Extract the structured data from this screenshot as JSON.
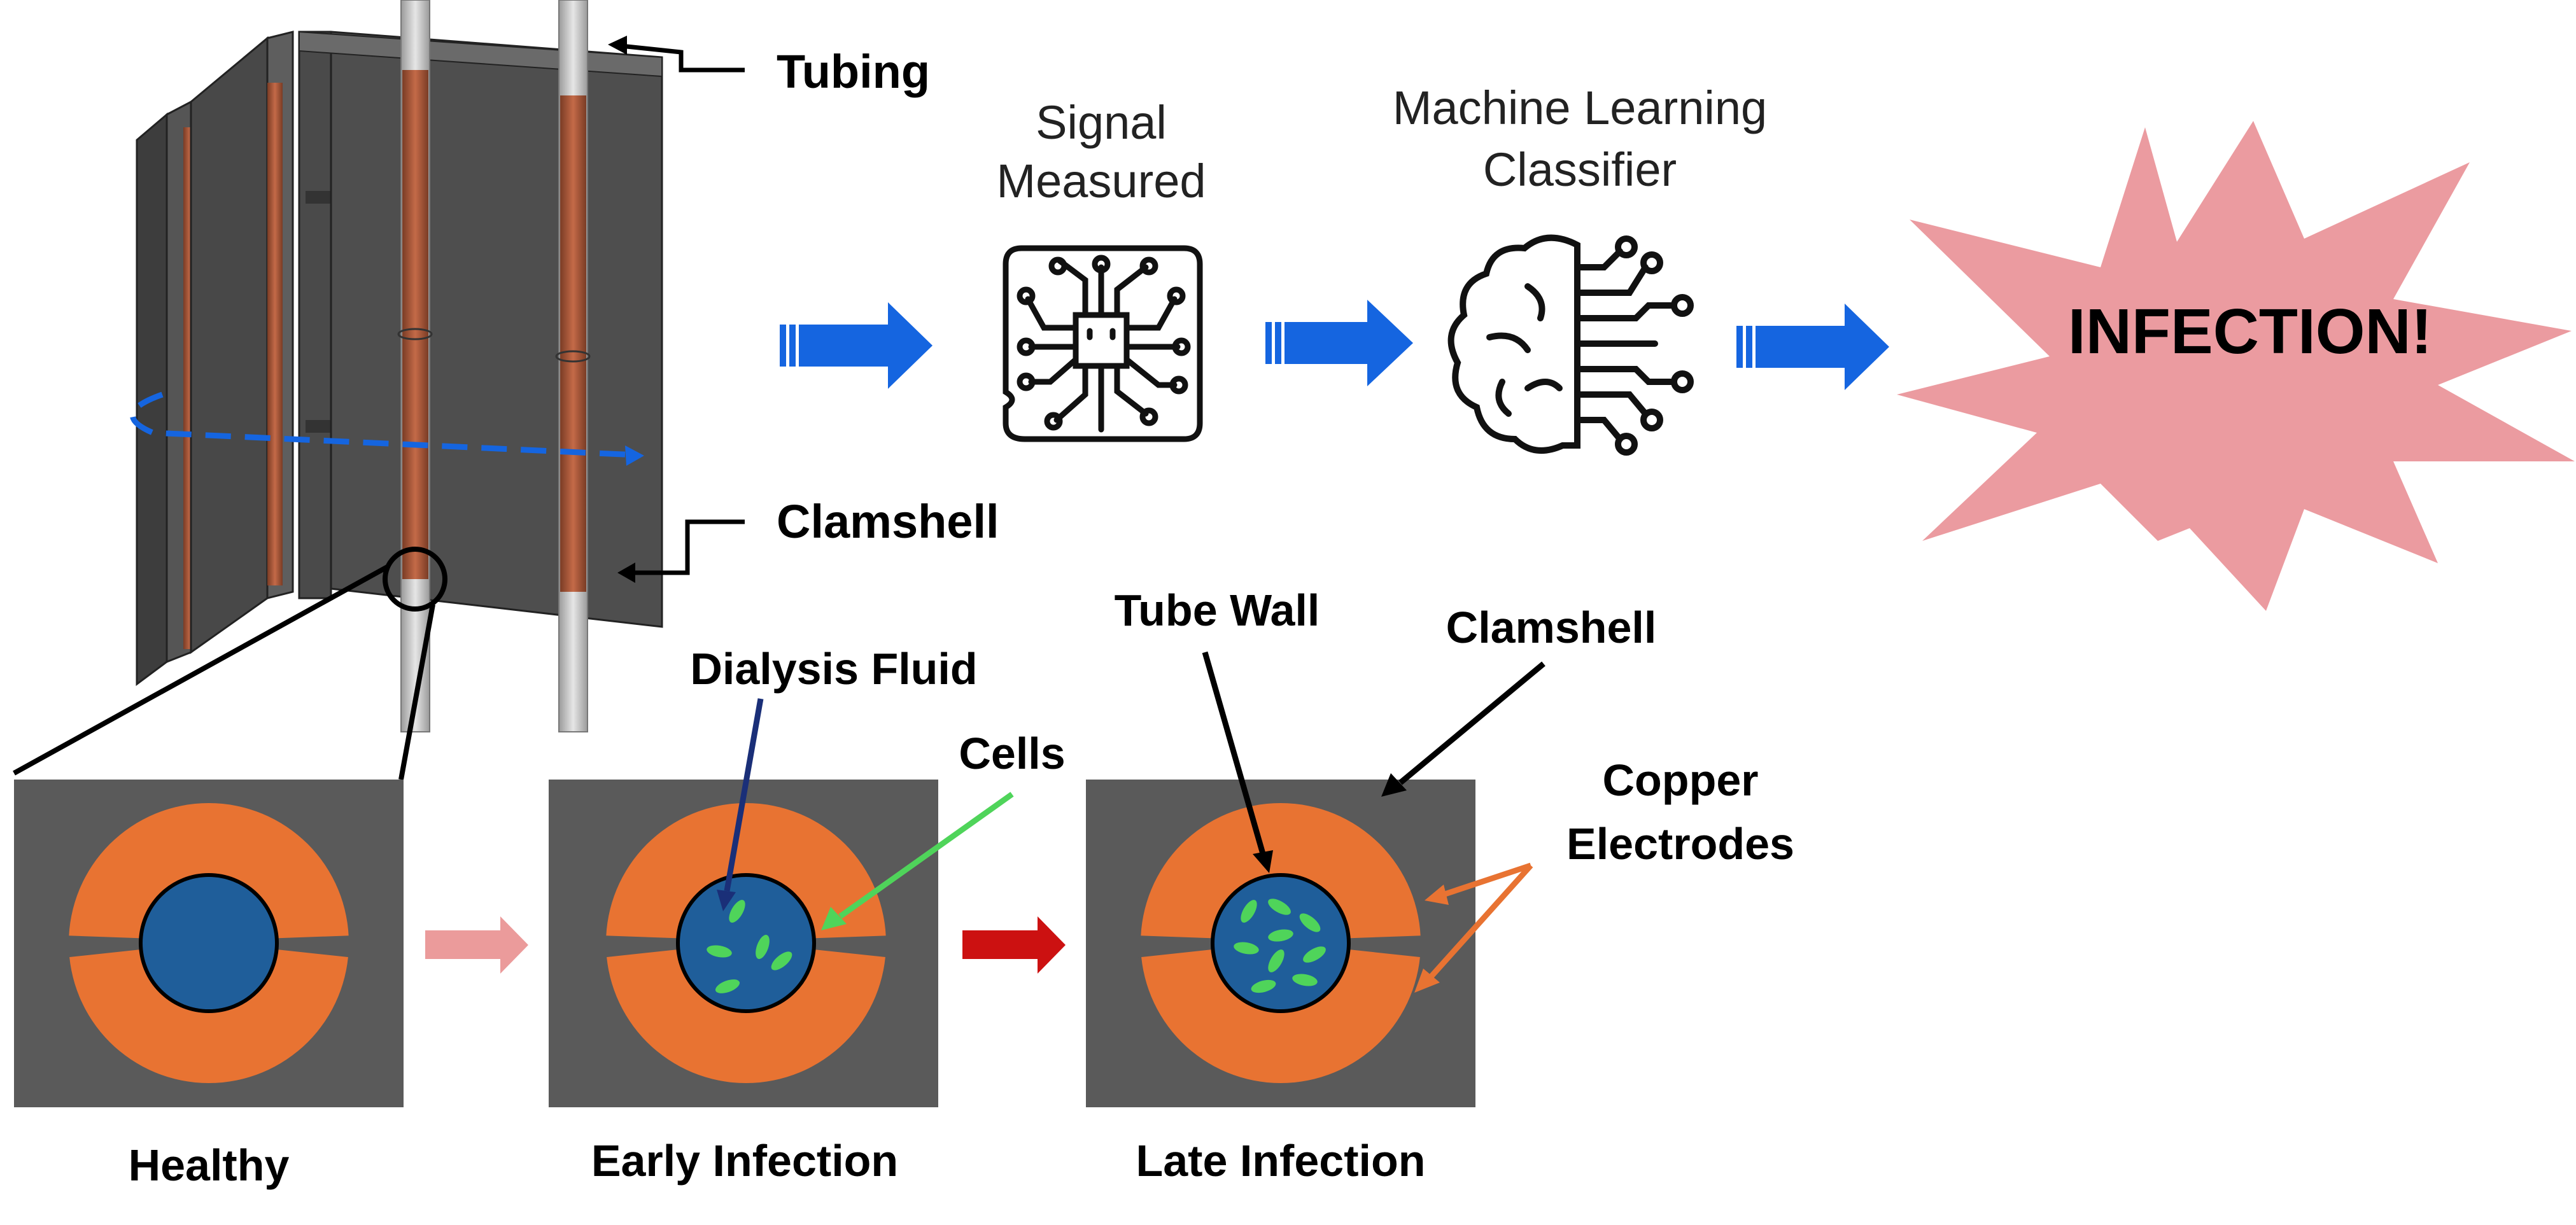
{
  "device": {
    "tubing_label": "Tubing",
    "clamshell_label": "Clamshell"
  },
  "pipeline": {
    "signal_line1": "Signal",
    "signal_line2": "Measured",
    "ml_line1": "Machine Learning",
    "ml_line2": "Classifier",
    "result": "INFECTION!"
  },
  "cross_sections": {
    "panels": [
      {
        "label": "Healthy",
        "cells": 0
      },
      {
        "label": "Early Infection",
        "cells": 5
      },
      {
        "label": "Late Infection",
        "cells": 9
      }
    ],
    "callouts": {
      "dialysis_fluid": "Dialysis Fluid",
      "cells": "Cells",
      "tube_wall": "Tube Wall",
      "clamshell": "Clamshell",
      "copper_line1": "Copper",
      "copper_line2": "Electrodes"
    }
  },
  "colors": {
    "clamshell_gray": "#5a5a5a",
    "copper_orange": "#e87332",
    "fluid_blue": "#1f5e9a",
    "cell_green": "#4fd45a",
    "flow_arrow_blue": "#1565e0",
    "starburst_pink": "#eb9ba0",
    "healthy_arrow": "#eb9b9b",
    "infection_arrow": "#cc1111"
  }
}
